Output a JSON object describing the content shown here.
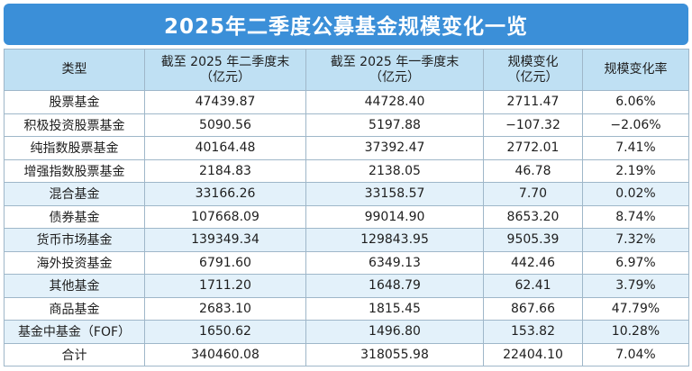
{
  "title": "2025年二季度公募基金规模变化一览",
  "headers": {
    "type": "类型",
    "q2_line1": "截至 2025 年二季度末",
    "q2_line2": "（亿元）",
    "q1_line1": "截至 2025 年一季度末",
    "q1_line2": "（亿元）",
    "change_line1": "规模变化",
    "change_line2": "（亿元）",
    "rate": "规模变化率"
  },
  "rows": [
    {
      "name": "股票基金",
      "q2": "47439.87",
      "q1": "44728.40",
      "change": "2711.47",
      "rate": "6.06%"
    },
    {
      "name": "积极投资股票基金",
      "q2": "5090.56",
      "q1": "5197.88",
      "change": "−107.32",
      "rate": "−2.06%"
    },
    {
      "name": "纯指数股票基金",
      "q2": "40164.48",
      "q1": "37392.47",
      "change": "2772.01",
      "rate": "7.41%"
    },
    {
      "name": "增强指数股票基金",
      "q2": "2184.83",
      "q1": "2138.05",
      "change": "46.78",
      "rate": "2.19%"
    },
    {
      "name": "混合基金",
      "q2": "33166.26",
      "q1": "33158.57",
      "change": "7.70",
      "rate": "0.02%"
    },
    {
      "name": "债券基金",
      "q2": "107668.09",
      "q1": "99014.90",
      "change": "8653.20",
      "rate": "8.74%"
    },
    {
      "name": "货币市场基金",
      "q2": "139349.34",
      "q1": "129843.95",
      "change": "9505.39",
      "rate": "7.32%"
    },
    {
      "name": "海外投资基金",
      "q2": "6791.60",
      "q1": "6349.13",
      "change": "442.46",
      "rate": "6.97%"
    },
    {
      "name": "其他基金",
      "q2": "1711.20",
      "q1": "1648.79",
      "change": "62.41",
      "rate": "3.79%"
    },
    {
      "name": "商品基金",
      "q2": "2683.10",
      "q1": "1815.45",
      "change": "867.66",
      "rate": "47.79%"
    },
    {
      "name": "基金中基金（FOF）",
      "q2": "1650.62",
      "q1": "1496.80",
      "change": "153.82",
      "rate": "10.28%"
    },
    {
      "name": "合计",
      "q2": "340460.08",
      "q1": "318055.98",
      "change": "22404.10",
      "rate": "7.04%"
    }
  ],
  "colors": {
    "title_bg": "#3b8fd8",
    "header_bg": "#bfe0f3",
    "alt_row_bg": "#e3f1fa",
    "border": "#9fb7c9"
  }
}
